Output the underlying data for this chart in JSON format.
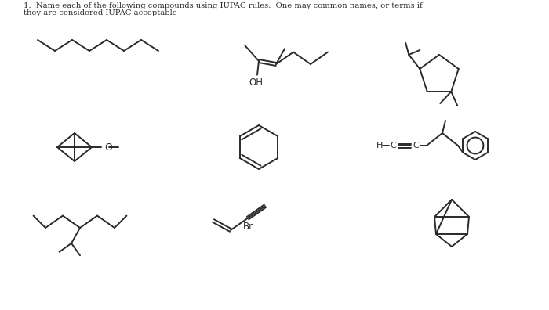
{
  "line_color": "#2a2a2a",
  "text_color": "#2a2a2a",
  "lw": 1.4,
  "title1": "1.  Name each of the following compounds using IUPAC rules.  One may common names, or terms if",
  "title2": "they are considered IUPAC acceptable",
  "oh_label": "OH",
  "o_label": "O",
  "h_label": "H",
  "br_label": "Br",
  "hcc_label": "H",
  "c1_label": "C",
  "c2_label": "C"
}
